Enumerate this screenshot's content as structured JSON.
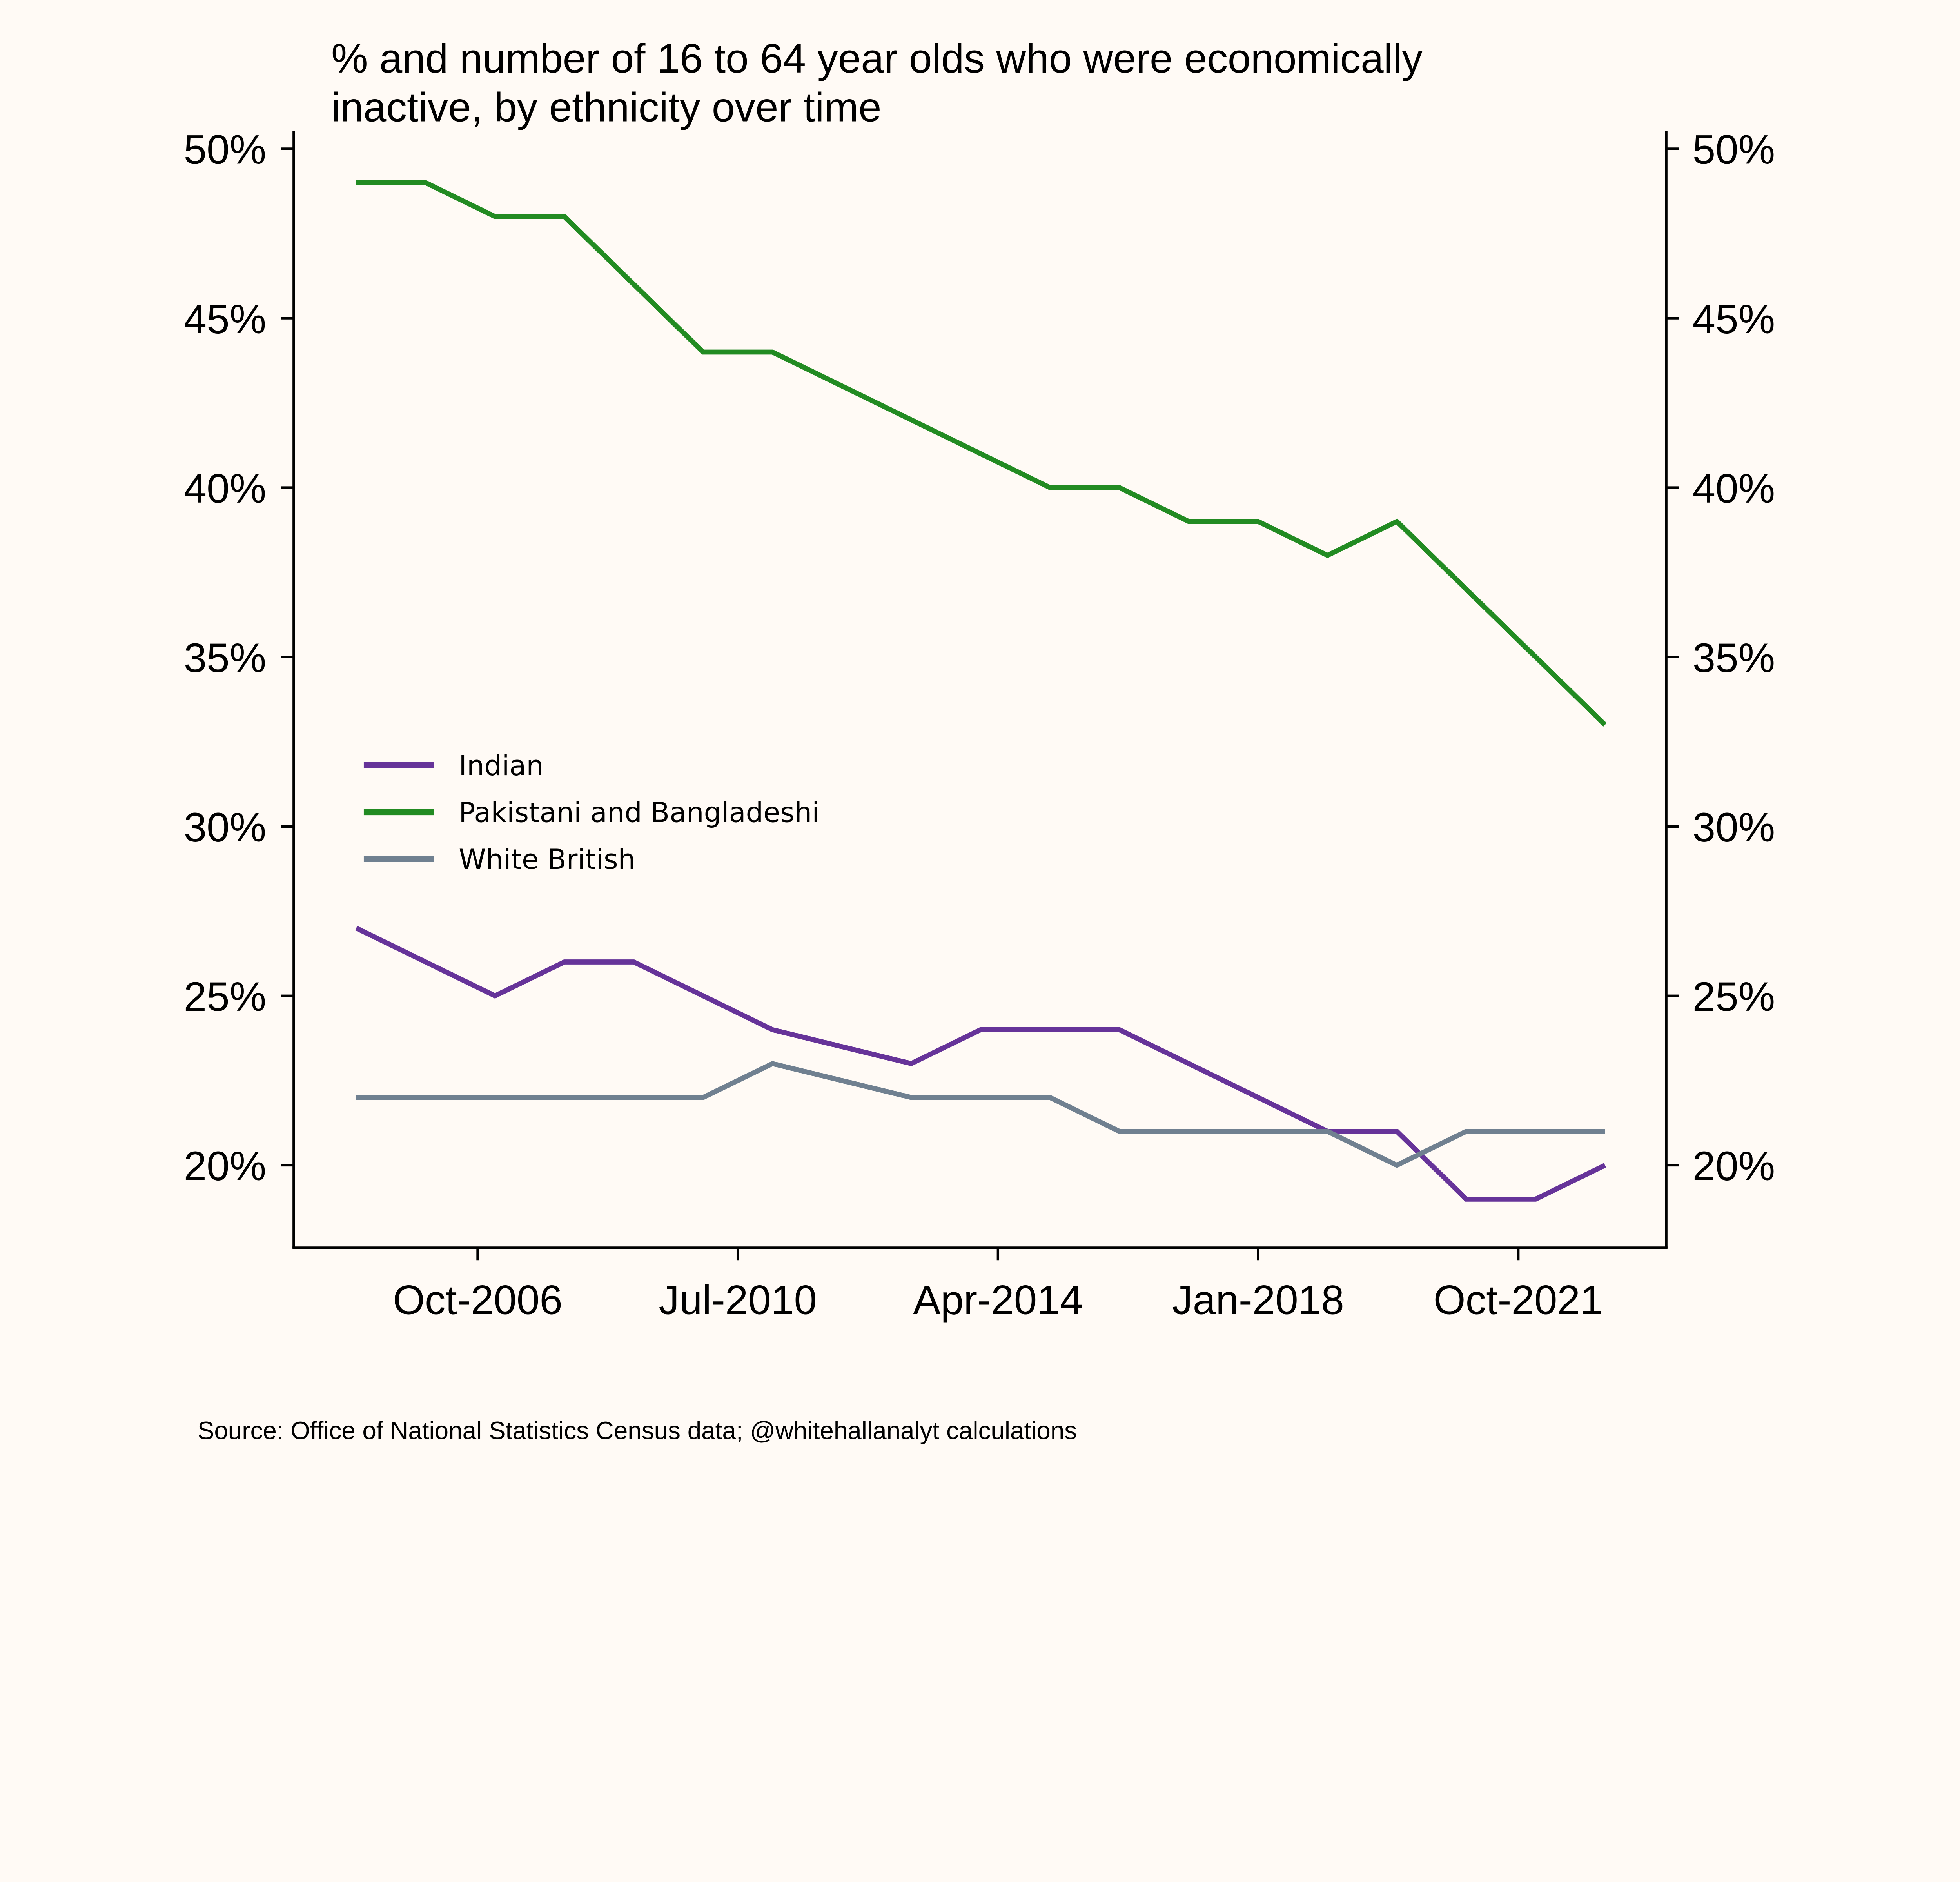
{
  "chart_data": {
    "type": "line",
    "title_lines": [
      "% and number of 16 to 64 year olds who were economically",
      "inactive, by ethnicity over time"
    ],
    "source": "Source: Office of National Statistics Census data; @whitehallanalyt calculations",
    "x": [
      2005,
      2006,
      2007,
      2008,
      2009,
      2010,
      2011,
      2012,
      2013,
      2014,
      2015,
      2016,
      2017,
      2018,
      2019,
      2020,
      2021,
      2022,
      2023
    ],
    "xticks": [
      {
        "value": 2006.75,
        "label": "Oct-2006"
      },
      {
        "value": 2010.5,
        "label": "Jul-2010"
      },
      {
        "value": 2014.25,
        "label": "Apr-2014"
      },
      {
        "value": 2018.0,
        "label": "Jan-2018"
      },
      {
        "value": 2021.75,
        "label": "Oct-2021"
      }
    ],
    "yticks": [
      {
        "value": 20,
        "label": "20%"
      },
      {
        "value": 25,
        "label": "25%"
      },
      {
        "value": 30,
        "label": "30%"
      },
      {
        "value": 35,
        "label": "35%"
      },
      {
        "value": 40,
        "label": "40%"
      },
      {
        "value": 45,
        "label": "45%"
      },
      {
        "value": 50,
        "label": "50%"
      }
    ],
    "ylim": [
      17.6,
      50.5
    ],
    "xlim": [
      2004.1,
      2023.9
    ],
    "legend_position": "center-left",
    "series": [
      {
        "name": "Indian",
        "color": "#663399",
        "values": [
          27,
          26,
          25,
          26,
          26,
          25,
          24,
          23.5,
          23,
          24,
          24,
          24,
          23,
          22,
          21,
          21,
          19,
          19,
          20
        ]
      },
      {
        "name": "Pakistani and Bangladeshi",
        "color": "#228b22",
        "values": [
          49,
          49,
          48,
          48,
          46,
          44,
          44,
          43,
          42,
          41,
          40,
          40,
          39,
          39,
          38,
          39,
          37,
          35,
          33
        ]
      },
      {
        "name": "White British",
        "color": "#708090",
        "values": [
          22,
          22,
          22,
          22,
          22,
          22,
          23,
          22.5,
          22,
          22,
          22,
          21,
          21,
          21,
          21,
          20,
          21,
          21,
          21
        ]
      }
    ]
  }
}
